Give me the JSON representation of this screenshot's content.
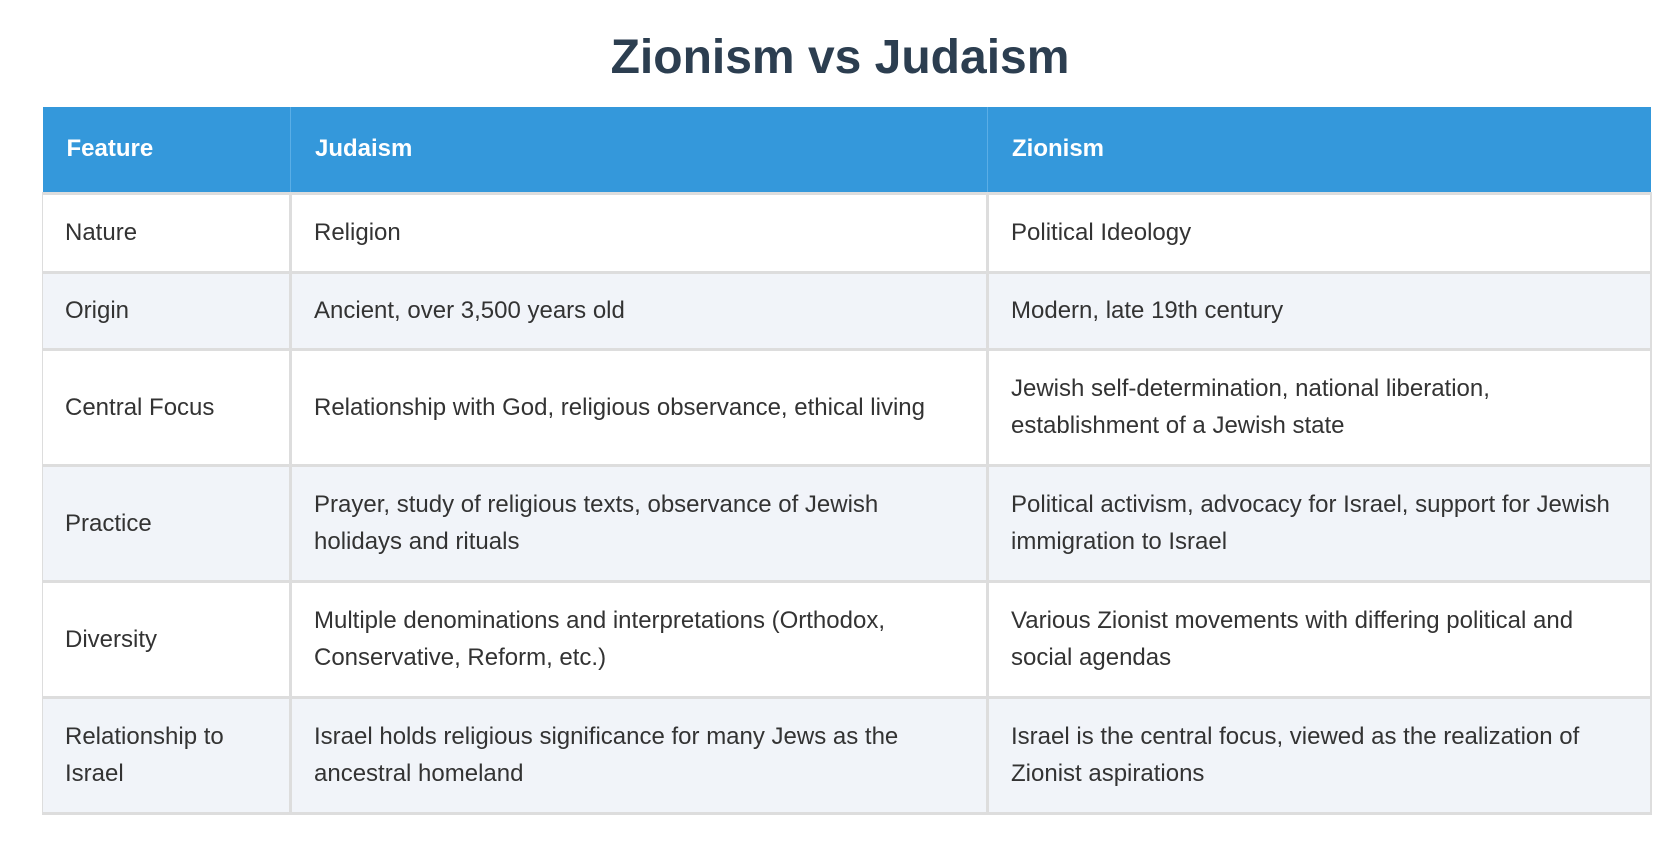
{
  "title": "Zionism vs Judaism",
  "table": {
    "headers": [
      "Feature",
      "Judaism",
      "Zionism"
    ],
    "rows": [
      {
        "feature": "Nature",
        "judaism": "Religion",
        "zionism": "Political Ideology"
      },
      {
        "feature": "Origin",
        "judaism": "Ancient, over 3,500 years old",
        "zionism": "Modern, late 19th century"
      },
      {
        "feature": "Central Focus",
        "judaism": "Relationship with God, religious observance, ethical living",
        "zionism": "Jewish self-determination, national liberation, establishment of a Jewish state"
      },
      {
        "feature": "Practice",
        "judaism": "Prayer, study of religious texts, observance of Jewish holidays and rituals",
        "zionism": "Political activism, advocacy for Israel, support for Jewish immigration to Israel"
      },
      {
        "feature": "Diversity",
        "judaism": "Multiple denominations and interpretations (Orthodox, Conservative, Reform, etc.)",
        "zionism": "Various Zionist movements with differing political and social agendas"
      },
      {
        "feature": "Relationship to Israel",
        "judaism": "Israel holds religious significance for many Jews as the ancestral homeland",
        "zionism": "Israel is the central focus, viewed as the realization of Zionist aspirations"
      }
    ]
  },
  "colors": {
    "title": "#2c3e50",
    "header_bg": "#3498db",
    "header_text": "#ffffff",
    "row_alt_bg": "#f1f4f9",
    "border": "#dddddd"
  }
}
